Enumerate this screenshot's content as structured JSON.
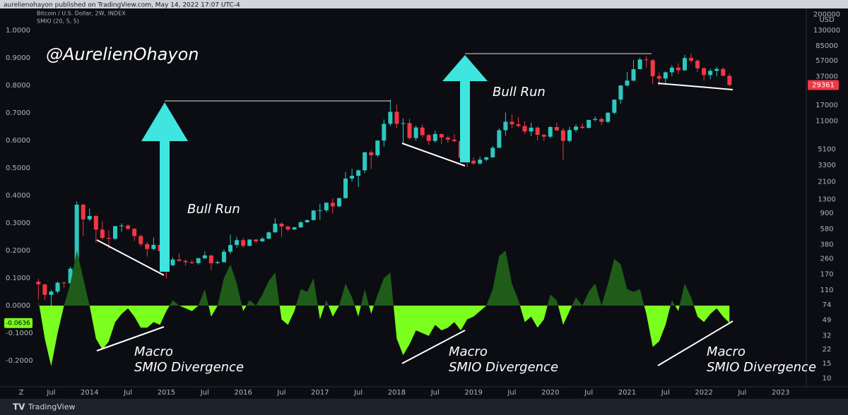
{
  "header": {
    "publisher": "aurelienohayon published on TradingView.com, May 14, 2022 17:07 UTC-4",
    "currency": "USD",
    "zoom_button": "Z"
  },
  "footer": {
    "brand": "TradingView"
  },
  "chart_data": {
    "type": "candlestick",
    "annotations": [
      "@AurelienOhayon",
      "Bull Run",
      "Bull Run",
      "Macro",
      "SMIO Divergence",
      "Macro",
      "SMIO Divergence",
      "Macro",
      "SMIO Divergence"
    ],
    "x": [
      "2013-05",
      "2013-06",
      "2013-07",
      "2013-08",
      "2013-09",
      "2013-10",
      "2013-11",
      "2013-12",
      "2014-01",
      "2014-02",
      "2014-03",
      "2014-04",
      "2014-05",
      "2014-06",
      "2014-07",
      "2014-08",
      "2014-09",
      "2014-10",
      "2014-11",
      "2014-12",
      "2015-01",
      "2015-02",
      "2015-03",
      "2015-04",
      "2015-05",
      "2015-06",
      "2015-07",
      "2015-08",
      "2015-09",
      "2015-10",
      "2015-11",
      "2015-12",
      "2016-01",
      "2016-02",
      "2016-03",
      "2016-04",
      "2016-05",
      "2016-06",
      "2016-07",
      "2016-08",
      "2016-09",
      "2016-10",
      "2016-11",
      "2016-12",
      "2017-01",
      "2017-02",
      "2017-03",
      "2017-04",
      "2017-05",
      "2017-06",
      "2017-07",
      "2017-08",
      "2017-09",
      "2017-10",
      "2017-11",
      "2017-12",
      "2018-01",
      "2018-02",
      "2018-03",
      "2018-04",
      "2018-05",
      "2018-06",
      "2018-07",
      "2018-08",
      "2018-09",
      "2018-10",
      "2018-11",
      "2018-12",
      "2019-01",
      "2019-02",
      "2019-03",
      "2019-04",
      "2019-05",
      "2019-06",
      "2019-07",
      "2019-08",
      "2019-09",
      "2019-10",
      "2019-11",
      "2019-12",
      "2020-01",
      "2020-02",
      "2020-03",
      "2020-04",
      "2020-05",
      "2020-06",
      "2020-07",
      "2020-08",
      "2020-09",
      "2020-10",
      "2020-11",
      "2020-12",
      "2021-01",
      "2021-02",
      "2021-03",
      "2021-04",
      "2021-05",
      "2021-06",
      "2021-07",
      "2021-08",
      "2021-09",
      "2021-10",
      "2021-11",
      "2021-12",
      "2022-01",
      "2022-02",
      "2022-03",
      "2022-04",
      "2022-05"
    ],
    "xlim": [
      "2012-11",
      "2023-05"
    ],
    "xticks": [
      {
        "value": "2013-07",
        "label": "Jul"
      },
      {
        "value": "2014-01",
        "label": "2014"
      },
      {
        "value": "2014-07",
        "label": "Jul"
      },
      {
        "value": "2015-01",
        "label": "2015"
      },
      {
        "value": "2015-07",
        "label": "Jul"
      },
      {
        "value": "2016-01",
        "label": "2016"
      },
      {
        "value": "2016-07",
        "label": "Jul"
      },
      {
        "value": "2017-01",
        "label": "2017"
      },
      {
        "value": "2017-07",
        "label": "Jul"
      },
      {
        "value": "2018-01",
        "label": "2018"
      },
      {
        "value": "2018-07",
        "label": "Jul"
      },
      {
        "value": "2019-01",
        "label": "2019"
      },
      {
        "value": "2019-07",
        "label": "Jul"
      },
      {
        "value": "2020-01",
        "label": "2020"
      },
      {
        "value": "2020-07",
        "label": "Jul"
      },
      {
        "value": "2021-01",
        "label": "2021"
      },
      {
        "value": "2021-07",
        "label": "Jul"
      },
      {
        "value": "2022-01",
        "label": "2022"
      },
      {
        "value": "2022-07",
        "label": "Jul"
      },
      {
        "value": "2023-01",
        "label": "2023"
      }
    ],
    "ylim": [
      -0.295,
      1.08
    ],
    "yticks": [
      {
        "value": 1.0,
        "label": "1.0000"
      },
      {
        "value": 0.9,
        "label": "0.9000"
      },
      {
        "value": 0.8,
        "label": "0.8000"
      },
      {
        "value": 0.7,
        "label": "0.7000"
      },
      {
        "value": 0.6,
        "label": "0.6000"
      },
      {
        "value": 0.5,
        "label": "0.5000"
      },
      {
        "value": 0.4,
        "label": "0.4000"
      },
      {
        "value": 0.3,
        "label": "0.3000"
      },
      {
        "value": 0.2,
        "label": "0.2000"
      },
      {
        "value": 0.1,
        "label": "0.1000"
      },
      {
        "value": 0,
        "label": "0.0000"
      },
      {
        "value": -0.1,
        "label": "-0.1000"
      },
      {
        "value": -0.2,
        "label": "-0.2000"
      }
    ],
    "y2lim": [
      7.94,
      236000
    ],
    "y2scale": "log",
    "y2ticks": [
      200000,
      130000,
      85000,
      57000,
      37000,
      17000,
      11000,
      5100,
      3300,
      2100,
      1300,
      900,
      580,
      380,
      260,
      170,
      110,
      74,
      49,
      32,
      22,
      15,
      10
    ],
    "grid": false,
    "series": [
      {
        "name": "Bitcoin / U.S. Dollar, 2W, INDEX",
        "type": "candlestick",
        "axis": "y2",
        "up_color": "#2bc8c0",
        "down_color": "#f23645",
        "ohlc": [
          [
            139,
            150,
            85,
            129
          ],
          [
            129,
            130,
            85,
            97
          ],
          [
            97,
            111,
            65,
            106
          ],
          [
            106,
            140,
            100,
            135
          ],
          [
            135,
            140,
            118,
            133
          ],
          [
            133,
            210,
            100,
            198
          ],
          [
            198,
            1240,
            190,
            1130
          ],
          [
            1130,
            1160,
            480,
            757
          ],
          [
            757,
            1020,
            720,
            830
          ],
          [
            830,
            850,
            400,
            573
          ],
          [
            573,
            720,
            440,
            457
          ],
          [
            457,
            560,
            340,
            447
          ],
          [
            447,
            630,
            430,
            630
          ],
          [
            630,
            680,
            540,
            640
          ],
          [
            640,
            660,
            565,
            586
          ],
          [
            586,
            600,
            420,
            480
          ],
          [
            480,
            500,
            360,
            386
          ],
          [
            386,
            410,
            275,
            338
          ],
          [
            338,
            460,
            325,
            378
          ],
          [
            378,
            385,
            310,
            320
          ],
          [
            320,
            320,
            152,
            217
          ],
          [
            217,
            270,
            210,
            254
          ],
          [
            254,
            300,
            240,
            244
          ],
          [
            244,
            255,
            215,
            236
          ],
          [
            236,
            250,
            225,
            230
          ],
          [
            230,
            265,
            220,
            263
          ],
          [
            263,
            315,
            255,
            284
          ],
          [
            284,
            285,
            190,
            230
          ],
          [
            230,
            245,
            225,
            236
          ],
          [
            236,
            335,
            235,
            314
          ],
          [
            314,
            500,
            295,
            377
          ],
          [
            377,
            470,
            350,
            430
          ],
          [
            430,
            460,
            350,
            368
          ],
          [
            368,
            440,
            365,
            437
          ],
          [
            437,
            440,
            395,
            416
          ],
          [
            416,
            470,
            410,
            448
          ],
          [
            448,
            545,
            440,
            531
          ],
          [
            531,
            780,
            530,
            673
          ],
          [
            673,
            700,
            470,
            624
          ],
          [
            624,
            630,
            550,
            575
          ],
          [
            575,
            620,
            570,
            609
          ],
          [
            609,
            720,
            600,
            700
          ],
          [
            700,
            755,
            690,
            742
          ],
          [
            742,
            975,
            740,
            963
          ],
          [
            963,
            1160,
            750,
            970
          ],
          [
            970,
            1210,
            920,
            1190
          ],
          [
            1190,
            1350,
            890,
            1080
          ],
          [
            1080,
            1360,
            1060,
            1350
          ],
          [
            1350,
            2760,
            1330,
            2300
          ],
          [
            2300,
            3000,
            2120,
            2480
          ],
          [
            2480,
            2950,
            1830,
            2875
          ],
          [
            2875,
            4760,
            2670,
            4700
          ],
          [
            4700,
            5000,
            2980,
            4340
          ],
          [
            4340,
            6470,
            4110,
            6470
          ],
          [
            6470,
            11500,
            5500,
            10200
          ],
          [
            10200,
            19800,
            9600,
            14150
          ],
          [
            14150,
            17200,
            9000,
            10220
          ],
          [
            10220,
            11800,
            6000,
            10390
          ],
          [
            10390,
            11700,
            6600,
            6930
          ],
          [
            6930,
            9750,
            6430,
            9240
          ],
          [
            9240,
            10000,
            7050,
            7500
          ],
          [
            7500,
            7770,
            5750,
            6400
          ],
          [
            6400,
            8500,
            6100,
            7730
          ],
          [
            7730,
            7760,
            5880,
            7030
          ],
          [
            7030,
            7400,
            6100,
            6630
          ],
          [
            6630,
            7700,
            6200,
            6370
          ],
          [
            6370,
            6600,
            3700,
            4040
          ],
          [
            4040,
            4300,
            3150,
            3740
          ],
          [
            3740,
            4100,
            3350,
            3460
          ],
          [
            3460,
            4200,
            3380,
            3850
          ],
          [
            3850,
            4150,
            3680,
            4100
          ],
          [
            4100,
            5600,
            4050,
            5320
          ],
          [
            5320,
            9000,
            5300,
            8570
          ],
          [
            8570,
            13900,
            7400,
            10820
          ],
          [
            10820,
            13200,
            9050,
            10080
          ],
          [
            10080,
            12300,
            9350,
            9630
          ],
          [
            9630,
            10900,
            7700,
            8290
          ],
          [
            8290,
            10500,
            7300,
            9200
          ],
          [
            9200,
            9500,
            6500,
            7570
          ],
          [
            7570,
            7750,
            6420,
            7190
          ],
          [
            7190,
            9580,
            6850,
            9350
          ],
          [
            9350,
            10500,
            8450,
            8540
          ],
          [
            8540,
            9180,
            3850,
            6420
          ],
          [
            6420,
            9460,
            6150,
            8630
          ],
          [
            8630,
            10070,
            8120,
            9460
          ],
          [
            9460,
            10400,
            8900,
            9140
          ],
          [
            9140,
            11450,
            8970,
            11350
          ],
          [
            11350,
            12480,
            10900,
            11650
          ],
          [
            11650,
            12100,
            9900,
            10780
          ],
          [
            10780,
            14100,
            10400,
            13800
          ],
          [
            13800,
            19900,
            13200,
            19700
          ],
          [
            19700,
            29300,
            17600,
            29000
          ],
          [
            29000,
            41900,
            28100,
            33100
          ],
          [
            33100,
            58300,
            32300,
            45200
          ],
          [
            45200,
            61800,
            45000,
            58800
          ],
          [
            58800,
            64800,
            47000,
            57700
          ],
          [
            57700,
            59600,
            30000,
            37300
          ],
          [
            37300,
            41300,
            28800,
            35000
          ],
          [
            35000,
            42400,
            29300,
            41500
          ],
          [
            41500,
            50500,
            37400,
            47100
          ],
          [
            47100,
            52900,
            39600,
            43800
          ],
          [
            43800,
            67000,
            43300,
            61300
          ],
          [
            61300,
            69000,
            53300,
            57000
          ],
          [
            57000,
            59100,
            42000,
            46300
          ],
          [
            46300,
            47900,
            33000,
            38500
          ],
          [
            38500,
            45800,
            34300,
            43200
          ],
          [
            43200,
            48200,
            37200,
            45500
          ],
          [
            45500,
            47400,
            37600,
            37700
          ],
          [
            37700,
            40000,
            28500,
            29361
          ]
        ]
      },
      {
        "name": "SMIO (20, 5, 5)",
        "type": "area",
        "axis": "y",
        "color": "#1f5c1a",
        "negative_color": "#7bff1e",
        "values": [
          0.02,
          -0.12,
          -0.22,
          -0.1,
          0.0,
          0.08,
          0.2,
          0.1,
          0.0,
          -0.12,
          -0.16,
          -0.13,
          -0.06,
          -0.03,
          -0.01,
          -0.04,
          -0.08,
          -0.08,
          -0.06,
          -0.07,
          -0.02,
          0.02,
          0.0,
          -0.01,
          -0.02,
          0.0,
          0.06,
          -0.04,
          0.0,
          0.1,
          0.15,
          0.08,
          -0.02,
          0.02,
          0.0,
          0.04,
          0.09,
          0.12,
          -0.05,
          -0.07,
          -0.02,
          0.06,
          0.05,
          0.1,
          -0.05,
          0.02,
          -0.04,
          0.0,
          0.08,
          0.03,
          -0.04,
          0.06,
          -0.03,
          0.04,
          0.1,
          0.12,
          -0.12,
          -0.18,
          -0.14,
          -0.09,
          -0.1,
          -0.11,
          -0.07,
          -0.09,
          -0.08,
          -0.06,
          -0.09,
          -0.05,
          -0.04,
          -0.02,
          0.0,
          0.06,
          0.18,
          0.2,
          0.08,
          0.02,
          -0.06,
          -0.04,
          -0.08,
          -0.05,
          0.04,
          0.02,
          -0.07,
          -0.02,
          0.03,
          0.0,
          0.05,
          0.08,
          0.0,
          0.08,
          0.17,
          0.15,
          0.06,
          0.05,
          0.06,
          -0.03,
          -0.15,
          -0.13,
          -0.07,
          0.02,
          -0.02,
          0.08,
          0.03,
          -0.04,
          -0.06,
          -0.03,
          -0.01,
          -0.04,
          -0.0636
        ]
      }
    ]
  }
}
